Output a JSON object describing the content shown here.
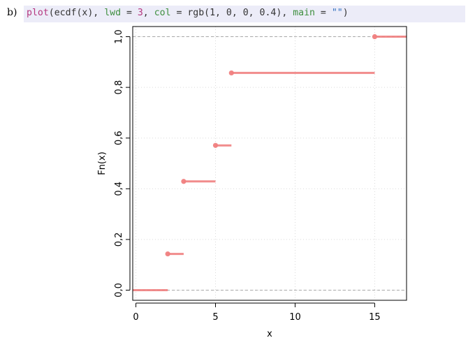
{
  "panel_label": "b)",
  "code": {
    "fn": "plot",
    "open": "(",
    "inner_call": "ecdf(x)",
    "sep1": ", ",
    "arg1_name": "lwd",
    "eq": " = ",
    "arg1_value": "3",
    "sep2": ", ",
    "arg2_name": "col",
    "arg2_value": "rgb(1, 0, 0, 0.4)",
    "sep3": ", ",
    "arg3_name": "main",
    "arg3_value": "\"\"",
    "close": ")"
  },
  "chart_data": {
    "type": "line",
    "subtype": "step-ecdf",
    "title": "",
    "xlabel": "x",
    "ylabel": "Fn(x)",
    "xlim": [
      -0.2,
      17.0
    ],
    "ylim": [
      -0.04,
      1.04
    ],
    "x_ticks": [
      0,
      5,
      10,
      15
    ],
    "x_tick_labels": [
      "0",
      "5",
      "10",
      "15"
    ],
    "y_ticks": [
      0.0,
      0.2,
      0.4,
      0.6,
      0.8,
      1.0
    ],
    "y_tick_labels": [
      "0,0",
      "0,2",
      "0,4",
      "0,6",
      "0,8",
      "1,0"
    ],
    "grid": true,
    "color": "#f08080",
    "reference_lines_y": [
      0,
      1
    ],
    "jump_points": [
      2,
      3,
      5,
      6,
      15
    ],
    "steps": [
      {
        "x_start": -0.2,
        "x_end": 2,
        "y": 0.0
      },
      {
        "x_start": 2,
        "x_end": 3,
        "y": 0.143
      },
      {
        "x_start": 3,
        "x_end": 5,
        "y": 0.429
      },
      {
        "x_start": 5,
        "x_end": 6,
        "y": 0.571
      },
      {
        "x_start": 6,
        "x_end": 15,
        "y": 0.857
      },
      {
        "x_start": 15,
        "x_end": 17.0,
        "y": 1.0
      }
    ]
  }
}
